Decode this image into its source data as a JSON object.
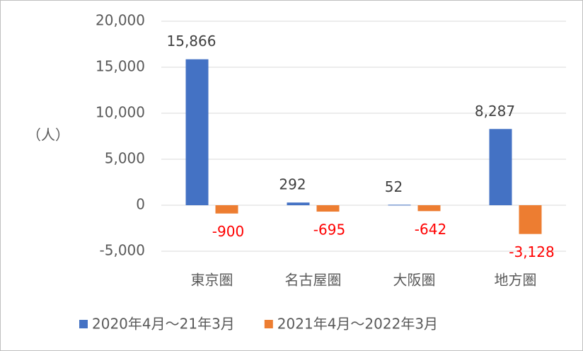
{
  "chart_data": {
    "type": "bar",
    "y_label": "（人）",
    "categories": [
      "東京圏",
      "名古屋圏",
      "大阪圏",
      "地方圏"
    ],
    "series": [
      {
        "name": "2020年4月～21年3月",
        "color": "#4472c4",
        "label_color": "#404040",
        "values": [
          15866,
          292,
          52,
          8287
        ],
        "value_labels": [
          "15,866",
          "292",
          "52",
          "8,287"
        ]
      },
      {
        "name": "2021年4月～2022年3月",
        "color": "#ed7d31",
        "label_color": "#ff0000",
        "values": [
          -900,
          -695,
          -642,
          -3128
        ],
        "value_labels": [
          "-900",
          "-695",
          "-642",
          "-3,128"
        ]
      }
    ],
    "ylim": [
      -5000,
      20000
    ],
    "yticks": [
      {
        "value": -5000,
        "label": "-5,000"
      },
      0,
      {
        "value": 5000,
        "label": "5,000"
      },
      {
        "value": 10000,
        "label": "10,000"
      },
      {
        "value": 15000,
        "label": "15,000"
      },
      {
        "value": 20000,
        "label": "20,000"
      }
    ],
    "grid": true
  }
}
